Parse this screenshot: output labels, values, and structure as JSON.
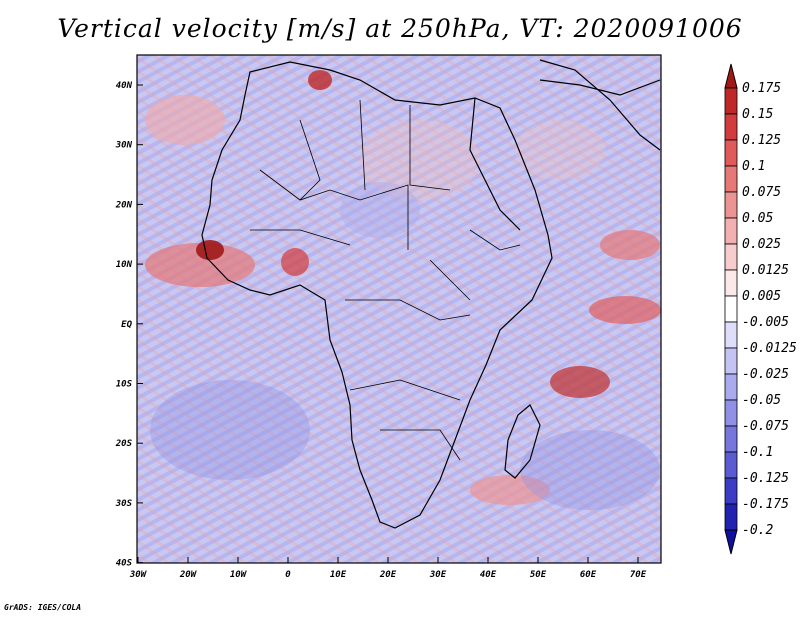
{
  "title": "Vertical velocity [m/s] at 250hPa, VT: 2020091006",
  "credit": "GrADS: IGES/COLA",
  "map": {
    "lat_ticks": [
      "40N",
      "30N",
      "20N",
      "10N",
      "EQ",
      "10S",
      "20S",
      "30S",
      "40S"
    ],
    "lon_ticks": [
      "30W",
      "20W",
      "10W",
      "0",
      "10E",
      "20E",
      "30E",
      "40E",
      "50E",
      "60E",
      "70E"
    ]
  },
  "colorbar": {
    "labels": [
      "0.175",
      "0.15",
      "0.125",
      "0.1",
      "0.075",
      "0.05",
      "0.025",
      "0.0125",
      "0.005",
      "-0.005",
      "-0.0125",
      "-0.025",
      "-0.05",
      "-0.075",
      "-0.1",
      "-0.125",
      "-0.175",
      "-0.2"
    ],
    "colors": [
      "#a01818",
      "#be2828",
      "#d23c3c",
      "#e05a5a",
      "#e67878",
      "#ec9494",
      "#f2b0b0",
      "#f7cccc",
      "#fbe8e8",
      "#ffffff",
      "#dedefa",
      "#c4c4f4",
      "#aaaaee",
      "#9090e6",
      "#7676dc",
      "#5c5cd2",
      "#3c3cc4",
      "#2222b0",
      "#1010a0"
    ]
  }
}
